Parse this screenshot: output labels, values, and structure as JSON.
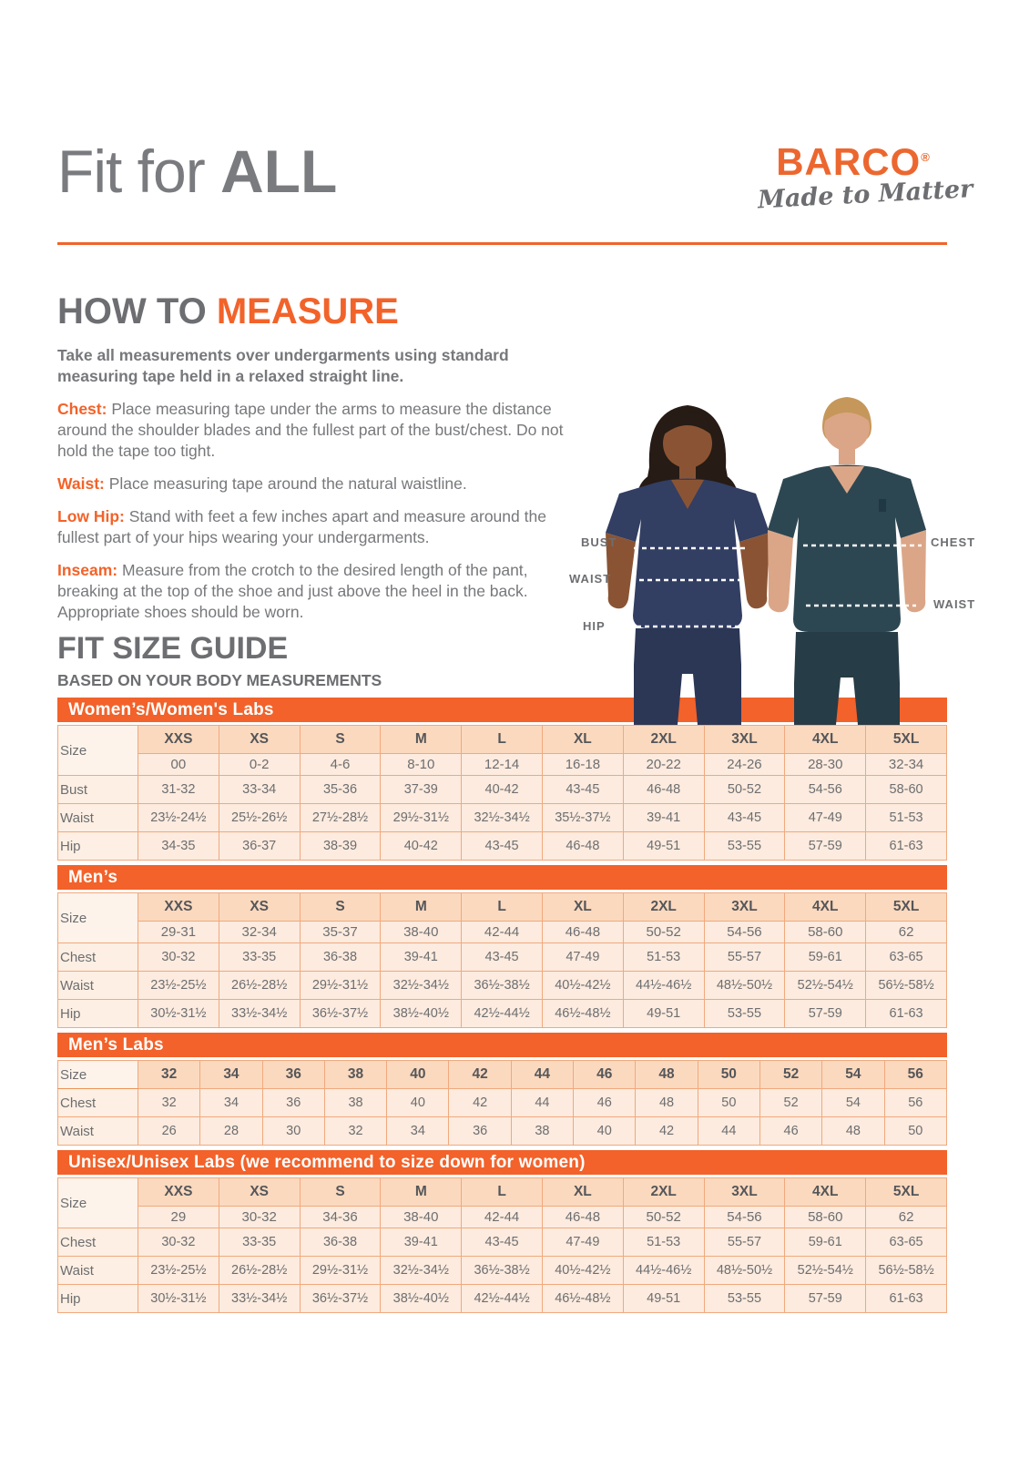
{
  "colors": {
    "accent_orange": "#f2632a",
    "logo_orange": "#ec672f",
    "gray_text": "#6d6e71",
    "band_orange": "#f2622a",
    "header_cell_peach": "#fbd9be",
    "data_cell_peach": "#fcebde"
  },
  "header": {
    "title_light": "Fit for ",
    "title_bold": "ALL",
    "brand": "BARCO",
    "brand_reg": "®",
    "tagline": "Made to Matter"
  },
  "how_to_measure": {
    "title_prefix": "HOW TO ",
    "title_accent": "MEASURE",
    "intro": "Take all measurements over undergarments using standard measuring tape held in a relaxed straight line.",
    "items": [
      {
        "label": "Chest:",
        "text": "Place measuring tape under the arms to measure the distance around the shoulder blades and the fullest part of the bust/chest. Do not hold the tape too tight."
      },
      {
        "label": "Waist:",
        "text": "Place measuring tape around the natural waistline."
      },
      {
        "label": "Low Hip:",
        "text": "Stand with feet a few inches apart and measure around the fullest part of your hips wearing your undergarments."
      },
      {
        "label": "Inseam:",
        "text": "Measure from the crotch to the desired length of the pant, breaking at the top of the shoe and just above the heel in the back. Appropriate shoes should be worn."
      }
    ]
  },
  "figure": {
    "bust": "BUST",
    "waist_left": "WAIST",
    "hip": "HIP",
    "chest": "CHEST",
    "waist_right": "WAIST"
  },
  "size_guide": {
    "title": "FIT SIZE GUIDE",
    "subtitle": "BASED ON YOUR BODY MEASUREMENTS",
    "tables": [
      {
        "band": "Women’s/Women's Labs",
        "size_label": "Size",
        "columns": [
          "XXS",
          "XS",
          "S",
          "M",
          "L",
          "XL",
          "2XL",
          "3XL",
          "4XL",
          "5XL"
        ],
        "subheader": [
          "00",
          "0-2",
          "4-6",
          "8-10",
          "12-14",
          "16-18",
          "20-22",
          "24-26",
          "28-30",
          "32-34"
        ],
        "rows": [
          {
            "label": "Bust",
            "values": [
              "31-32",
              "33-34",
              "35-36",
              "37-39",
              "40-42",
              "43-45",
              "46-48",
              "50-52",
              "54-56",
              "58-60"
            ]
          },
          {
            "label": "Waist",
            "values": [
              "23½-24½",
              "25½-26½",
              "27½-28½",
              "29½-31½",
              "32½-34½",
              "35½-37½",
              "39-41",
              "43-45",
              "47-49",
              "51-53"
            ]
          },
          {
            "label": "Hip",
            "values": [
              "34-35",
              "36-37",
              "38-39",
              "40-42",
              "43-45",
              "46-48",
              "49-51",
              "53-55",
              "57-59",
              "61-63"
            ]
          }
        ]
      },
      {
        "band": "Men’s",
        "size_label": "Size",
        "columns": [
          "XXS",
          "XS",
          "S",
          "M",
          "L",
          "XL",
          "2XL",
          "3XL",
          "4XL",
          "5XL"
        ],
        "subheader": [
          "29-31",
          "32-34",
          "35-37",
          "38-40",
          "42-44",
          "46-48",
          "50-52",
          "54-56",
          "58-60",
          "62"
        ],
        "rows": [
          {
            "label": "Chest",
            "values": [
              "30-32",
              "33-35",
              "36-38",
              "39-41",
              "43-45",
              "47-49",
              "51-53",
              "55-57",
              "59-61",
              "63-65"
            ]
          },
          {
            "label": "Waist",
            "values": [
              "23½-25½",
              "26½-28½",
              "29½-31½",
              "32½-34½",
              "36½-38½",
              "40½-42½",
              "44½-46½",
              "48½-50½",
              "52½-54½",
              "56½-58½"
            ]
          },
          {
            "label": "Hip",
            "values": [
              "30½-31½",
              "33½-34½",
              "36½-37½",
              "38½-40½",
              "42½-44½",
              "46½-48½",
              "49-51",
              "53-55",
              "57-59",
              "61-63"
            ]
          }
        ]
      },
      {
        "band": "Men’s Labs",
        "size_label": "Size",
        "columns": [
          "32",
          "34",
          "36",
          "38",
          "40",
          "42",
          "44",
          "46",
          "48",
          "50",
          "52",
          "54",
          "56"
        ],
        "subheader": null,
        "rows": [
          {
            "label": "Chest",
            "values": [
              "32",
              "34",
              "36",
              "38",
              "40",
              "42",
              "44",
              "46",
              "48",
              "50",
              "52",
              "54",
              "56"
            ]
          },
          {
            "label": "Waist",
            "values": [
              "26",
              "28",
              "30",
              "32",
              "34",
              "36",
              "38",
              "40",
              "42",
              "44",
              "46",
              "48",
              "50"
            ]
          }
        ]
      },
      {
        "band": "Unisex/Unisex Labs (we recommend to size down for women)",
        "size_label": "Size",
        "columns": [
          "XXS",
          "XS",
          "S",
          "M",
          "L",
          "XL",
          "2XL",
          "3XL",
          "4XL",
          "5XL"
        ],
        "subheader": [
          "29",
          "30-32",
          "34-36",
          "38-40",
          "42-44",
          "46-48",
          "50-52",
          "54-56",
          "58-60",
          "62"
        ],
        "rows": [
          {
            "label": "Chest",
            "values": [
              "30-32",
              "33-35",
              "36-38",
              "39-41",
              "43-45",
              "47-49",
              "51-53",
              "55-57",
              "59-61",
              "63-65"
            ]
          },
          {
            "label": "Waist",
            "values": [
              "23½-25½",
              "26½-28½",
              "29½-31½",
              "32½-34½",
              "36½-38½",
              "40½-42½",
              "44½-46½",
              "48½-50½",
              "52½-54½",
              "56½-58½"
            ]
          },
          {
            "label": "Hip",
            "values": [
              "30½-31½",
              "33½-34½",
              "36½-37½",
              "38½-40½",
              "42½-44½",
              "46½-48½",
              "49-51",
              "53-55",
              "57-59",
              "61-63"
            ]
          }
        ]
      }
    ]
  }
}
